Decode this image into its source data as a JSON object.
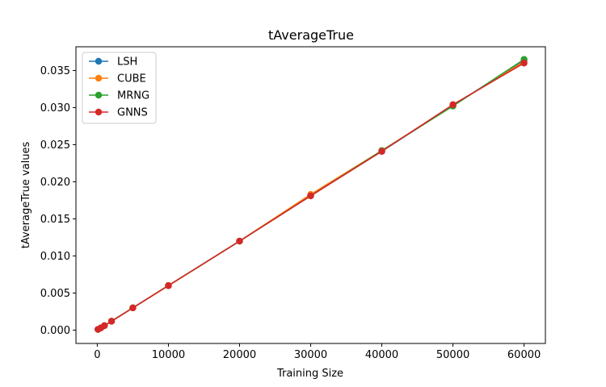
{
  "chart_data": {
    "type": "line",
    "title": "tAverageTrue",
    "xlabel": "Training Size",
    "ylabel": "tAverageTrue values",
    "xlim": [
      -3000,
      63000
    ],
    "ylim": [
      -0.0018,
      0.0382
    ],
    "xticks": [
      0,
      10000,
      20000,
      30000,
      40000,
      50000,
      60000
    ],
    "xtick_labels": [
      "0",
      "10000",
      "20000",
      "30000",
      "40000",
      "50000",
      "60000"
    ],
    "yticks": [
      0.0,
      0.005,
      0.01,
      0.015,
      0.02,
      0.025,
      0.03,
      0.035
    ],
    "ytick_labels": [
      "0.000",
      "0.005",
      "0.010",
      "0.015",
      "0.020",
      "0.025",
      "0.030",
      "0.035"
    ],
    "grid": false,
    "legend_position": "top-left",
    "x": [
      100,
      500,
      1000,
      2000,
      5000,
      10000,
      20000,
      30000,
      40000,
      50000,
      60000
    ],
    "series": [
      {
        "name": "LSH",
        "color": "#1f77b4",
        "values": [
          0.0001,
          0.0003,
          0.0006,
          0.0012,
          0.003,
          0.006,
          0.012,
          0.0182,
          0.0241,
          0.0303,
          0.0363
        ]
      },
      {
        "name": "CUBE",
        "color": "#ff7f0e",
        "values": [
          0.0001,
          0.0003,
          0.0006,
          0.0012,
          0.003,
          0.006,
          0.012,
          0.0183,
          0.0242,
          0.0303,
          0.0362
        ]
      },
      {
        "name": "MRNG",
        "color": "#2ca02c",
        "values": [
          0.0001,
          0.0003,
          0.0006,
          0.0012,
          0.003,
          0.006,
          0.012,
          0.0181,
          0.0242,
          0.0302,
          0.0365
        ]
      },
      {
        "name": "GNNS",
        "color": "#d62728",
        "values": [
          0.0001,
          0.0003,
          0.0006,
          0.0012,
          0.003,
          0.006,
          0.012,
          0.0181,
          0.0241,
          0.0304,
          0.036
        ]
      }
    ]
  }
}
